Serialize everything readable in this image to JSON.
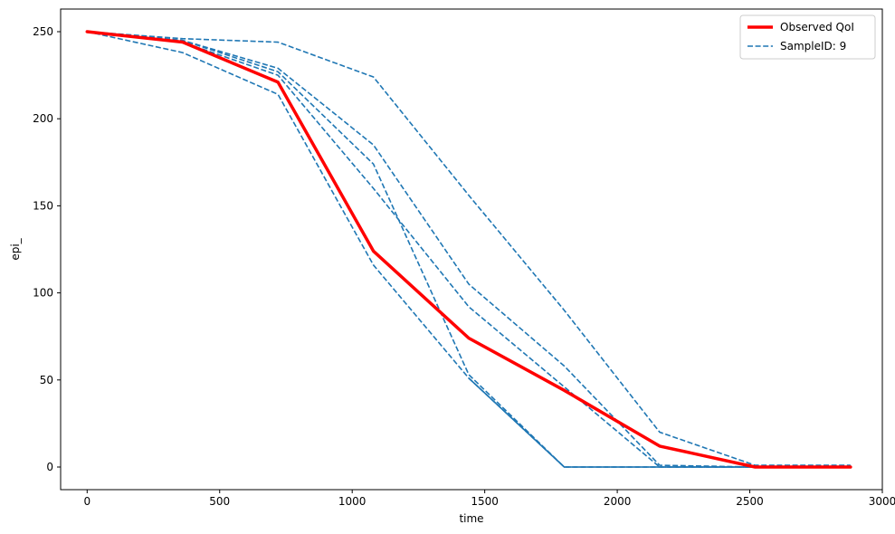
{
  "chart_data": {
    "type": "line",
    "title": "",
    "xlabel": "time",
    "ylabel": "epi_",
    "xlim": [
      -100,
      3000
    ],
    "ylim": [
      -13,
      263
    ],
    "x_ticks": [
      0,
      500,
      1000,
      1500,
      2000,
      2500,
      3000
    ],
    "y_ticks": [
      0,
      50,
      100,
      150,
      200,
      250
    ],
    "grid": false,
    "legend_position": "top-right",
    "legend": [
      {
        "label": "Observed QoI",
        "color": "#ff0000",
        "style": "solid"
      },
      {
        "label": "SampleID: 9",
        "color": "#1f77b4",
        "style": "dashed"
      }
    ],
    "series": [
      {
        "name": "Observed QoI",
        "color": "#ff0000",
        "style": "solid",
        "width": 3.5,
        "x": [
          0,
          360,
          720,
          1080,
          1440,
          1800,
          2160,
          2520,
          2880
        ],
        "y": [
          250,
          244,
          221,
          124,
          74,
          44,
          12,
          0,
          0
        ]
      },
      {
        "name": "SampleID: 9",
        "color": "#1f77b4",
        "style": "dashed",
        "width": 1.6,
        "x": [
          0,
          360,
          720,
          1080,
          1440,
          1800,
          2160,
          2520,
          2880
        ],
        "y": [
          250,
          238,
          214,
          116,
          51,
          0,
          0,
          0,
          0
        ]
      },
      {
        "color": "#1f77b4",
        "style": "dashed",
        "width": 1.6,
        "x": [
          0,
          360,
          720,
          1080,
          1440,
          1800,
          2160,
          2520,
          2880
        ],
        "y": [
          250,
          246,
          244,
          224,
          156,
          90,
          20,
          1,
          1
        ]
      },
      {
        "color": "#1f77b4",
        "style": "dashed",
        "width": 1.6,
        "x": [
          0,
          360,
          720,
          1080,
          1440,
          1800,
          2160,
          2520,
          2880
        ],
        "y": [
          250,
          245,
          229,
          185,
          105,
          58,
          1,
          0,
          0
        ]
      },
      {
        "color": "#1f77b4",
        "style": "dashed",
        "width": 1.6,
        "x": [
          0,
          360,
          720,
          1080,
          1440,
          1800,
          2160,
          2520,
          2880
        ],
        "y": [
          250,
          245,
          227,
          174,
          53,
          0,
          0,
          0,
          0
        ]
      },
      {
        "color": "#1f77b4",
        "style": "dashed",
        "width": 1.6,
        "x": [
          0,
          360,
          720,
          1080,
          1440,
          1800,
          2160,
          2520,
          2880
        ],
        "y": [
          250,
          244,
          225,
          160,
          92,
          46,
          0,
          0,
          0
        ]
      },
      {
        "color": "#1f77b4",
        "style": "solid",
        "width": 1.6,
        "x": [
          1440,
          1800,
          2160,
          2520,
          2880
        ],
        "y": [
          51,
          0,
          0,
          0,
          0
        ]
      }
    ]
  }
}
